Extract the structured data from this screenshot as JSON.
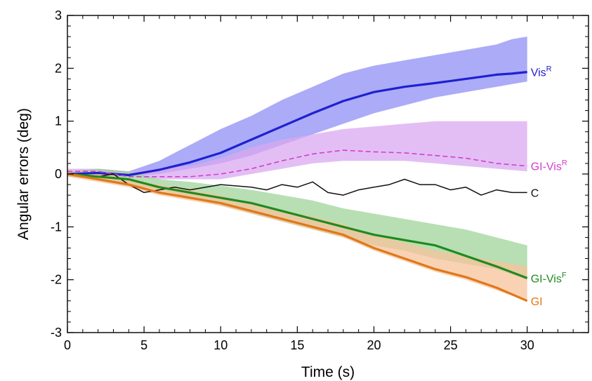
{
  "chart_data": {
    "type": "line",
    "title": "",
    "xlabel": "Time (s)",
    "ylabel": "Angular errors (deg)",
    "xlim": [
      0,
      34
    ],
    "ylim": [
      -3,
      3
    ],
    "x_ticks": [
      "0",
      "5",
      "10",
      "15",
      "20",
      "25",
      "30"
    ],
    "y_ticks": [
      "3",
      "2",
      "1",
      "0",
      "-1",
      "-2",
      "-3"
    ],
    "grid": false,
    "series": [
      {
        "name": "VisR",
        "label_main": "Vis",
        "label_sup": "R",
        "color": "#2020d0",
        "line": "thick-solid",
        "band_color": "#8f8ff5",
        "x": [
          0,
          2,
          4,
          6,
          8,
          10,
          12,
          14,
          16,
          18,
          20,
          22,
          24,
          26,
          28,
          29,
          30
        ],
        "values": [
          0,
          0.02,
          -0.02,
          0.08,
          0.22,
          0.4,
          0.65,
          0.9,
          1.15,
          1.38,
          1.55,
          1.65,
          1.72,
          1.8,
          1.88,
          1.9,
          1.93
        ],
        "band_upper": [
          0.05,
          0.1,
          0.05,
          0.25,
          0.55,
          0.85,
          1.1,
          1.4,
          1.65,
          1.9,
          2.05,
          2.15,
          2.25,
          2.35,
          2.45,
          2.55,
          2.6
        ],
        "band_lower": [
          -0.05,
          -0.05,
          -0.05,
          0.0,
          0.1,
          0.2,
          0.35,
          0.55,
          0.75,
          0.95,
          1.15,
          1.3,
          1.45,
          1.55,
          1.65,
          1.7,
          1.75
        ]
      },
      {
        "name": "GI-VisR",
        "label_main": "GI-Vis",
        "label_sup": "R",
        "color": "#d040d0",
        "line": "dashed",
        "band_color": "#d9a8f0",
        "x": [
          0,
          2,
          4,
          6,
          8,
          10,
          12,
          14,
          16,
          18,
          20,
          22,
          24,
          26,
          28,
          30
        ],
        "values": [
          0.05,
          0.05,
          -0.05,
          -0.05,
          -0.05,
          0,
          0.1,
          0.25,
          0.38,
          0.45,
          0.42,
          0.4,
          0.35,
          0.3,
          0.2,
          0.15
        ],
        "band_upper": [
          0.1,
          0.1,
          0.05,
          0.1,
          0.15,
          0.3,
          0.5,
          0.65,
          0.75,
          0.85,
          0.9,
          0.95,
          1.0,
          1.0,
          1.0,
          1.0
        ],
        "band_lower": [
          -0.05,
          -0.05,
          -0.05,
          -0.1,
          -0.1,
          -0.1,
          0.0,
          0.1,
          0.2,
          0.25,
          0.25,
          0.25,
          0.2,
          0.15,
          0.1,
          0.05
        ]
      },
      {
        "name": "C",
        "label_main": "C",
        "label_sup": "",
        "color": "#111111",
        "line": "thin-solid",
        "x": [
          0,
          2,
          3,
          4,
          5,
          6,
          7,
          8,
          10,
          12,
          13,
          14,
          15,
          16,
          17,
          18,
          19,
          20,
          21,
          22,
          23,
          24,
          25,
          26,
          27,
          28,
          29,
          30
        ],
        "values": [
          0,
          -0.05,
          0,
          -0.2,
          -0.35,
          -0.3,
          -0.25,
          -0.3,
          -0.2,
          -0.25,
          -0.3,
          -0.2,
          -0.25,
          -0.15,
          -0.35,
          -0.4,
          -0.3,
          -0.25,
          -0.2,
          -0.1,
          -0.2,
          -0.2,
          -0.3,
          -0.25,
          -0.4,
          -0.3,
          -0.35,
          -0.35
        ]
      },
      {
        "name": "GI-VisF",
        "label_main": "GI-Vis",
        "label_sup": "F",
        "color": "#1f8a1f",
        "line": "thick-solid",
        "band_color": "#9fd49a",
        "x": [
          0,
          2,
          4,
          6,
          8,
          10,
          12,
          14,
          16,
          18,
          20,
          22,
          24,
          26,
          28,
          30
        ],
        "values": [
          0,
          -0.05,
          -0.1,
          -0.25,
          -0.35,
          -0.45,
          -0.55,
          -0.7,
          -0.85,
          -1.0,
          -1.15,
          -1.25,
          -1.35,
          -1.55,
          -1.75,
          -1.97
        ],
        "band_upper": [
          0.05,
          0.1,
          0.05,
          -0.1,
          -0.15,
          -0.22,
          -0.3,
          -0.4,
          -0.5,
          -0.65,
          -0.75,
          -0.85,
          -0.95,
          -1.05,
          -1.2,
          -1.35
        ],
        "band_lower": [
          -0.05,
          -0.1,
          -0.2,
          -0.3,
          -0.45,
          -0.6,
          -0.75,
          -0.9,
          -1.05,
          -1.2,
          -1.35,
          -1.45,
          -1.6,
          -1.7,
          -1.8,
          -2.0
        ]
      },
      {
        "name": "GI",
        "label_main": "GI",
        "label_sup": "",
        "color": "#e07818",
        "line": "thick-solid",
        "band_color": "#f7c39b",
        "x": [
          0,
          2,
          4,
          6,
          8,
          10,
          12,
          14,
          16,
          18,
          20,
          22,
          24,
          26,
          28,
          30
        ],
        "values": [
          0,
          -0.1,
          -0.2,
          -0.35,
          -0.45,
          -0.55,
          -0.7,
          -0.85,
          -1.0,
          -1.15,
          -1.4,
          -1.6,
          -1.8,
          -1.95,
          -2.15,
          -2.4
        ],
        "band_upper": [
          0.05,
          0.05,
          -0.1,
          -0.2,
          -0.3,
          -0.4,
          -0.55,
          -0.7,
          -0.8,
          -0.95,
          -1.15,
          -1.3,
          -1.45,
          -1.55,
          -1.65,
          -1.75
        ],
        "band_lower": [
          -0.05,
          -0.15,
          -0.25,
          -0.4,
          -0.5,
          -0.6,
          -0.75,
          -0.9,
          -1.05,
          -1.2,
          -1.45,
          -1.65,
          -1.85,
          -2.0,
          -2.2,
          -2.4
        ]
      }
    ]
  }
}
